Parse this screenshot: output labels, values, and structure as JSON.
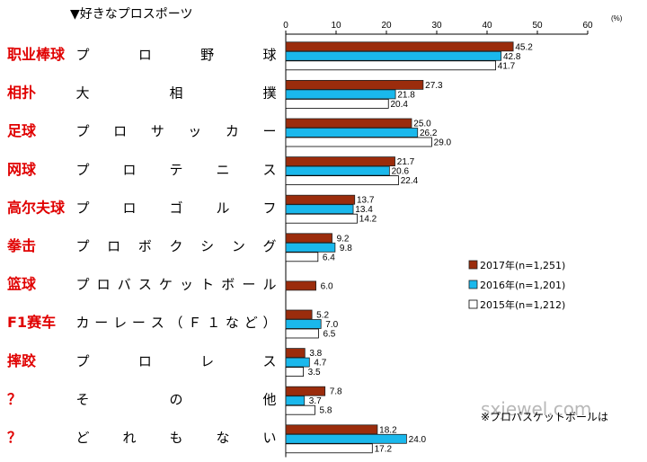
{
  "chart_data": {
    "type": "bar",
    "orientation": "horizontal",
    "title": "▼好きなプロスポーツ",
    "unit": "(%)",
    "xlim": [
      0,
      60
    ],
    "xticks": [
      "0",
      "10",
      "20",
      "30",
      "40",
      "50",
      "60"
    ],
    "categories": [
      {
        "cn": "职业棒球",
        "jp": [
          "プ",
          "ロ",
          "野",
          "球"
        ]
      },
      {
        "cn": "相扑",
        "jp": [
          "大",
          "相",
          "撲"
        ]
      },
      {
        "cn": "足球",
        "jp": [
          "プ",
          "ロ",
          "サ",
          "ッ",
          "カ",
          "ー"
        ]
      },
      {
        "cn": "网球",
        "jp": [
          "プ",
          "ロ",
          "テ",
          "ニ",
          "ス"
        ]
      },
      {
        "cn": "高尔夫球",
        "jp": [
          "プ",
          "ロ",
          "ゴ",
          "ル",
          "フ"
        ]
      },
      {
        "cn": "拳击",
        "jp": [
          "プ",
          "ロ",
          "ボ",
          "ク",
          "シ",
          "ン",
          "グ"
        ]
      },
      {
        "cn": "篮球",
        "jp": [
          "プ",
          "ロ",
          "バ",
          "ス",
          "ケ",
          "ッ",
          "ト",
          "ボ",
          "ー",
          "ル"
        ]
      },
      {
        "cn": "F1赛车",
        "jp": [
          "カ",
          "ー",
          "レ",
          "ー",
          "ス",
          "（",
          "Ｆ",
          "１",
          "な",
          "ど",
          "）"
        ]
      },
      {
        "cn": "摔跤",
        "jp": [
          "プ",
          "ロ",
          "レ",
          "ス"
        ]
      },
      {
        "cn": "？",
        "jp": [
          "そ",
          "の",
          "他"
        ]
      },
      {
        "cn": "？",
        "jp": [
          "ど",
          "れ",
          "も",
          "な",
          "い"
        ]
      }
    ],
    "series": [
      {
        "name": "2017年(n=1,251)",
        "color": "#9b2c0c",
        "values": [
          45.2,
          27.3,
          25.0,
          21.7,
          13.7,
          9.2,
          6.0,
          5.2,
          3.8,
          7.8,
          18.2
        ],
        "labels": [
          "45.2",
          "27.3",
          "25.0",
          "21.7",
          "13.7",
          "9.2",
          "6.0",
          "5.2",
          "3.8",
          "7.8",
          "18.2"
        ]
      },
      {
        "name": "2016年(n=1,201)",
        "color": "#1ab8ec",
        "values": [
          42.8,
          21.8,
          26.2,
          20.6,
          13.4,
          9.8,
          null,
          7.0,
          4.7,
          3.7,
          24.0
        ],
        "labels": [
          "42.8",
          "21.8",
          "26.2",
          "20.6",
          "13.4",
          "9.8",
          null,
          "7.0",
          "4.7",
          "3.7",
          "24.0"
        ]
      },
      {
        "name": "2015年(n=1,212)",
        "color": "#ffffff",
        "values": [
          41.7,
          20.4,
          29.0,
          22.4,
          14.2,
          6.4,
          null,
          6.5,
          3.5,
          5.8,
          17.2
        ],
        "labels": [
          "41.7",
          "20.4",
          "29.0",
          "22.4",
          "14.2",
          "6.4",
          null,
          "6.5",
          "3.5",
          "5.8",
          "17.2"
        ]
      }
    ],
    "legend_position": "right-middle",
    "grid": false
  },
  "watermark": "sxjewel.com",
  "note": "※プロバスケットボールは"
}
